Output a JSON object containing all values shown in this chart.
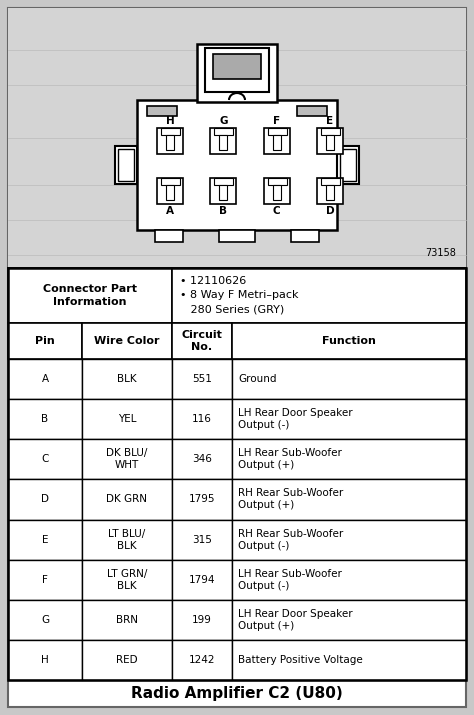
{
  "title": "Radio Amplifier C2 (U80)",
  "background_color": "#c8c8c8",
  "diagram_number": "73158",
  "connector_info_label": "Connector Part\nInformation",
  "connector_info_value": "• 12110626\n• 8 Way F Metri–pack\n   280 Series (GRY)",
  "table_headers": [
    "Pin",
    "Wire Color",
    "Circuit\nNo.",
    "Function"
  ],
  "rows": [
    [
      "A",
      "BLK",
      "551",
      "Ground"
    ],
    [
      "B",
      "YEL",
      "116",
      "LH Rear Door Speaker\nOutput (-)"
    ],
    [
      "C",
      "DK BLU/\nWHT",
      "346",
      "LH Rear Sub-Woofer\nOutput (+)"
    ],
    [
      "D",
      "DK GRN",
      "1795",
      "RH Rear Sub-Woofer\nOutput (+)"
    ],
    [
      "E",
      "LT BLU/\nBLK",
      "315",
      "RH Rear Sub-Woofer\nOutput (-)"
    ],
    [
      "F",
      "LT GRN/\nBLK",
      "1794",
      "LH Rear Sub-Woofer\nOutput (-)"
    ],
    [
      "G",
      "BRN",
      "199",
      "LH Rear Door Speaker\nOutput (+)"
    ],
    [
      "H",
      "RED",
      "1242",
      "Battery Positive Voltage"
    ]
  ],
  "pin_labels_top": [
    "H",
    "G",
    "F",
    "E"
  ],
  "pin_labels_bottom": [
    "A",
    "B",
    "C",
    "D"
  ]
}
